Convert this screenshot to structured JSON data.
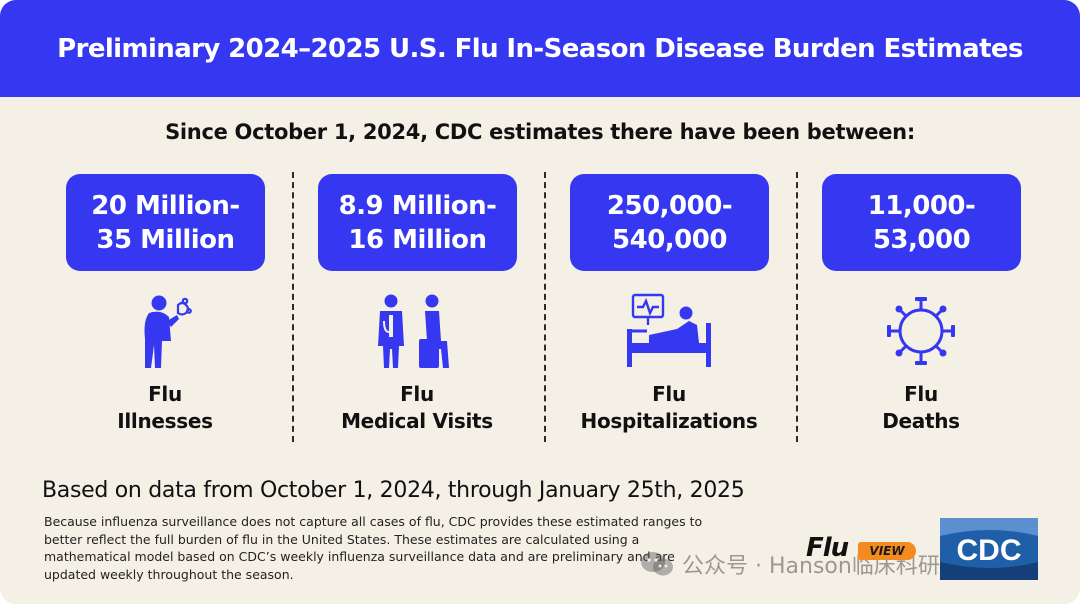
{
  "banner": {
    "title": "Preliminary 2024–2025 U.S. Flu In-Season Disease Burden Estimates"
  },
  "subhead": "Since October 1, 2024, CDC estimates there have been between:",
  "stats": [
    {
      "range_lines": [
        "20 Million-",
        "35 Million"
      ],
      "label_lines": [
        "Flu",
        "Illnesses"
      ],
      "icon": "sick-person-icon"
    },
    {
      "range_lines": [
        "8.9 Million-",
        "16 Million"
      ],
      "label_lines": [
        "Flu",
        "Medical Visits"
      ],
      "icon": "doctor-patient-icon"
    },
    {
      "range_lines": [
        "250,000-",
        "540,000"
      ],
      "label_lines": [
        "Flu",
        "Hospitalizations"
      ],
      "icon": "hospital-bed-icon"
    },
    {
      "range_lines": [
        "11,000-",
        "53,000"
      ],
      "label_lines": [
        "Flu",
        "Deaths"
      ],
      "icon": "virus-icon"
    }
  ],
  "basis": "Based on data from October 1, 2024, through January 25th, 2025",
  "disclaimer": "Because influenza surveillance does not capture all cases of flu, CDC provides these estimated ranges to better reflect the full burden of flu in the United States. These estimates are calculated using a mathematical model based on CDC’s weekly influenza surveillance data and are preliminary and are updated weekly throughout the season.",
  "logos": {
    "fluview": {
      "flu": "Flu",
      "view": "VIEW"
    },
    "cdc": "CDC"
  },
  "watermark": "公众号 · Hanson临床科研",
  "colors": {
    "accent": "#3538f0",
    "background": "#f5f0e6",
    "fluview_orange": "#f28c1e"
  }
}
